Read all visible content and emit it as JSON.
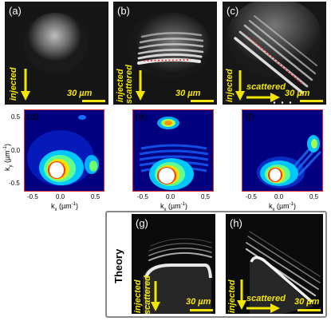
{
  "panels": {
    "a": {
      "label": "(a)",
      "arrow1": "injected",
      "scale": "30 µm"
    },
    "b": {
      "label": "(b)",
      "arrow1": "injected",
      "arrow2": "scattered",
      "scale": "30 µm"
    },
    "c": {
      "label": "(c)",
      "arrow1": "injected",
      "arrow2": "scattered",
      "scale": "30 µm"
    },
    "d": {
      "label": "(d)"
    },
    "e": {
      "label": "(e)"
    },
    "f": {
      "label": "(f)"
    },
    "g": {
      "label": "(g)",
      "arrow1": "injected",
      "arrow2": "scattered",
      "scale": "30 µm"
    },
    "h": {
      "label": "(h)",
      "arrow1": "injected",
      "arrow2": "scattered",
      "scale": "30 µm"
    }
  },
  "kspace": {
    "xlabel_main": "k",
    "xlabel_sub": "x",
    "xlabel_unit": " (µm",
    "xlabel_exp": "-1",
    "xlabel_close": ")",
    "ylabel_main": "k",
    "ylabel_sub": "y",
    "ylabel_unit": " (µm",
    "ylabel_exp": "-1",
    "ylabel_close": ")",
    "xticks": [
      "-0.5",
      "0.0",
      "0.5"
    ],
    "yticks": [
      "0.5",
      "0.0",
      "-0.5"
    ]
  },
  "theory_label": "Theory",
  "colors": {
    "accent_yellow": "#f2e600",
    "dashed_red": "#ff2020",
    "frame_red": "#e03030",
    "theory_border": "#888888"
  }
}
